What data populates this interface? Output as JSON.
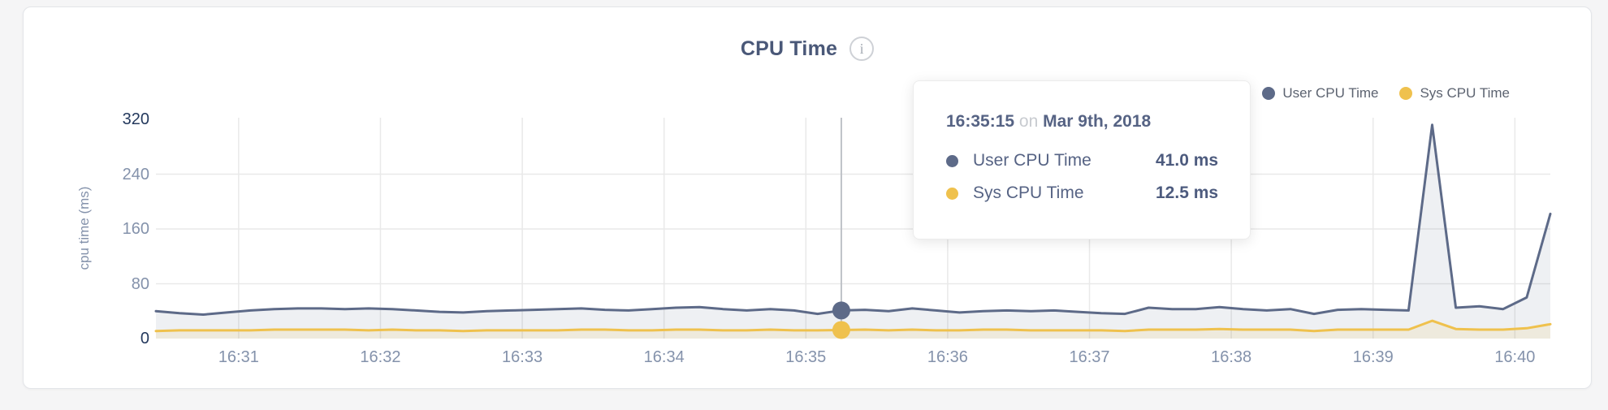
{
  "page": {
    "background": "#f5f5f6"
  },
  "card": {
    "background": "#ffffff",
    "border_color": "#e3e5e9"
  },
  "header": {
    "title": "CPU Time",
    "info_icon_glyph": "i"
  },
  "legend": [
    {
      "label": "User CPU Time",
      "color": "#5d6a88"
    },
    {
      "label": "Sys CPU Time",
      "color": "#efc14d"
    }
  ],
  "tooltip": {
    "time": "16:35:15",
    "connector": "on",
    "date": "Mar 9th, 2018",
    "rows": [
      {
        "label": "User CPU Time",
        "value": "41.0 ms",
        "color": "#5d6a88"
      },
      {
        "label": "Sys CPU Time",
        "value": "12.5 ms",
        "color": "#efc14d"
      }
    ]
  },
  "chart_data": {
    "type": "area",
    "title": "CPU Time",
    "xlabel": "",
    "ylabel": "cpu time (ms)",
    "ylim": [
      0,
      320
    ],
    "y_ticks": [
      0,
      80,
      160,
      240,
      320
    ],
    "x_ticks": [
      "16:31",
      "16:32",
      "16:33",
      "16:34",
      "16:35",
      "16:36",
      "16:37",
      "16:38",
      "16:39",
      "16:40"
    ],
    "grid": true,
    "legend_position": "top-right",
    "grid_color": "#e9e9e9",
    "x": [
      "16:30:25",
      "16:30:35",
      "16:30:45",
      "16:30:55",
      "16:31:05",
      "16:31:15",
      "16:31:25",
      "16:31:35",
      "16:31:45",
      "16:31:55",
      "16:32:05",
      "16:32:15",
      "16:32:25",
      "16:32:35",
      "16:32:45",
      "16:32:55",
      "16:33:05",
      "16:33:15",
      "16:33:25",
      "16:33:35",
      "16:33:45",
      "16:33:55",
      "16:34:05",
      "16:34:15",
      "16:34:25",
      "16:34:35",
      "16:34:45",
      "16:34:55",
      "16:35:05",
      "16:35:15",
      "16:35:25",
      "16:35:35",
      "16:35:45",
      "16:35:55",
      "16:36:05",
      "16:36:15",
      "16:36:25",
      "16:36:35",
      "16:36:45",
      "16:36:55",
      "16:37:05",
      "16:37:15",
      "16:37:25",
      "16:37:35",
      "16:37:45",
      "16:37:55",
      "16:38:05",
      "16:38:15",
      "16:38:25",
      "16:38:35",
      "16:38:45",
      "16:38:55",
      "16:39:05",
      "16:39:15",
      "16:39:25",
      "16:39:35",
      "16:39:45",
      "16:39:55",
      "16:40:05",
      "16:40:15"
    ],
    "series": [
      {
        "name": "User CPU Time",
        "color": "#5d6a88",
        "fill": "rgba(93,106,136,0.10)",
        "values": [
          40,
          37,
          35,
          38,
          41,
          43,
          44,
          44,
          43,
          44,
          43,
          41,
          39,
          38,
          40,
          41,
          42,
          43,
          44,
          42,
          41,
          43,
          45,
          46,
          43,
          41,
          43,
          41,
          36,
          41,
          42,
          40,
          44,
          41,
          38,
          40,
          41,
          40,
          41,
          39,
          37,
          36,
          45,
          43,
          43,
          46,
          43,
          41,
          43,
          36,
          42,
          43,
          42,
          41,
          312,
          45,
          47,
          43,
          60,
          182
        ]
      },
      {
        "name": "Sys CPU Time",
        "color": "#efc14d",
        "fill": "rgba(239,193,77,0.13)",
        "values": [
          11,
          12,
          12,
          12,
          12,
          13,
          13,
          13,
          13,
          12,
          13,
          12,
          12,
          11,
          12,
          12,
          12,
          12,
          13,
          13,
          12,
          12,
          13,
          13,
          12,
          12,
          13,
          12,
          12,
          12.5,
          13,
          12,
          13,
          12,
          12,
          13,
          13,
          12,
          12,
          12,
          12,
          11,
          13,
          13,
          13,
          14,
          13,
          13,
          13,
          11,
          13,
          13,
          13,
          13,
          26,
          14,
          13,
          13,
          15,
          21
        ]
      }
    ],
    "highlight": {
      "x": "16:35:15",
      "crosshair_color": "#bfc2c8"
    }
  }
}
